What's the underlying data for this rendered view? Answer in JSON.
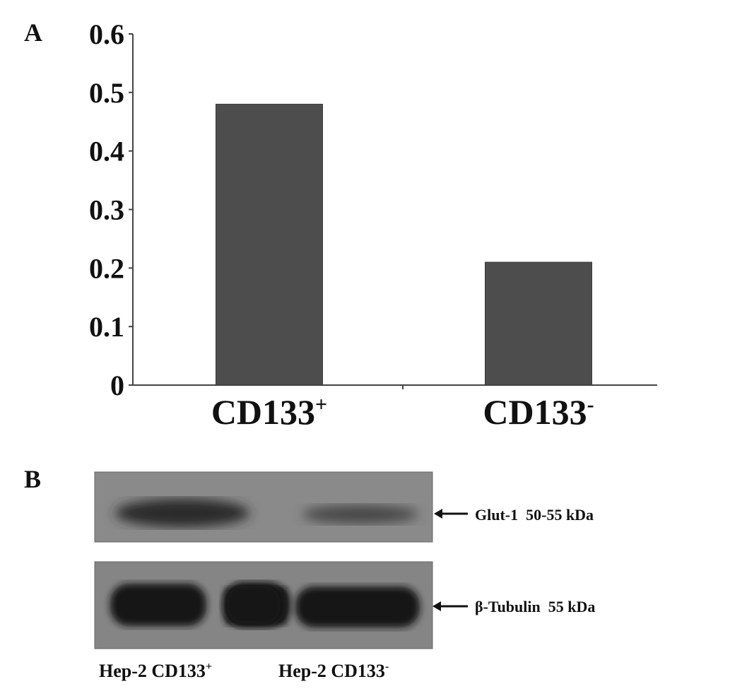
{
  "panel_a_label": "A",
  "panel_b_label": "B",
  "chart_data": {
    "type": "bar",
    "categories": [
      "CD133+",
      "CD133-"
    ],
    "category_labels": [
      {
        "base": "CD133",
        "sup": "+"
      },
      {
        "base": "CD133",
        "sup": "-"
      }
    ],
    "values": [
      0.48,
      0.21
    ],
    "ylim": [
      0,
      0.6
    ],
    "yticks": [
      "0",
      "0.1",
      "0.2",
      "0.3",
      "0.4",
      "0.5",
      "0.6"
    ],
    "xlabel": "",
    "ylabel": "",
    "bar_color": "#4d4d4d",
    "grid": false
  },
  "blot": {
    "bands": [
      {
        "label": "Glut-1  50-55 kDa",
        "intensity": [
          "strong",
          "weak"
        ]
      },
      {
        "label": "β-Tubulin  55 kDa",
        "intensity": [
          "strong",
          "strong"
        ]
      }
    ],
    "lanes": [
      {
        "base": "Hep-2 CD133",
        "sup": "+"
      },
      {
        "base": "Hep-2 CD133",
        "sup": "-"
      }
    ]
  }
}
